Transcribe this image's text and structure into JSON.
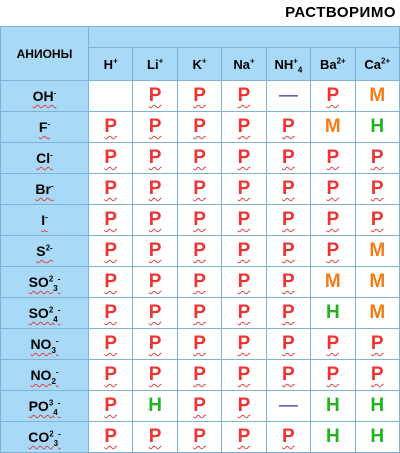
{
  "title": "РАСТВОРИМО",
  "anion_header": "АНИОНЫ",
  "cations": [
    {
      "base": "H",
      "sup": "+",
      "sub": ""
    },
    {
      "base": "Li",
      "sup": "+",
      "sub": ""
    },
    {
      "base": "K",
      "sup": "+",
      "sub": ""
    },
    {
      "base": "Na",
      "sup": "+",
      "sub": ""
    },
    {
      "base": "NH",
      "sup": "+",
      "sub": "4"
    },
    {
      "base": "Ba",
      "sup": "2+",
      "sub": ""
    },
    {
      "base": "Ca",
      "sup": "2+",
      "sub": ""
    }
  ],
  "rows": [
    {
      "anion": {
        "base": "OH",
        "sup": "-",
        "sub": ""
      },
      "values": [
        "",
        "Р",
        "Р",
        "Р",
        "—",
        "Р",
        "М"
      ]
    },
    {
      "anion": {
        "base": "F",
        "sup": "-",
        "sub": ""
      },
      "values": [
        "Р",
        "Р",
        "Р",
        "Р",
        "Р",
        "М",
        "Н"
      ]
    },
    {
      "anion": {
        "base": "Cl",
        "sup": "-",
        "sub": ""
      },
      "values": [
        "Р",
        "Р",
        "Р",
        "Р",
        "Р",
        "Р",
        "Р"
      ]
    },
    {
      "anion": {
        "base": "Br",
        "sup": "-",
        "sub": ""
      },
      "values": [
        "Р",
        "Р",
        "Р",
        "Р",
        "Р",
        "Р",
        "Р"
      ]
    },
    {
      "anion": {
        "base": "I",
        "sup": "-",
        "sub": ""
      },
      "values": [
        "Р",
        "Р",
        "Р",
        "Р",
        "Р",
        "Р",
        "Р"
      ]
    },
    {
      "anion": {
        "base": "S",
        "sup": "2-",
        "sub": ""
      },
      "values": [
        "Р",
        "Р",
        "Р",
        "Р",
        "Р",
        "Р",
        "М"
      ]
    },
    {
      "anion": {
        "base": "SO",
        "sup": "2",
        "sub": "3",
        "tail": "-"
      },
      "values": [
        "Р",
        "Р",
        "Р",
        "Р",
        "Р",
        "М",
        "М"
      ]
    },
    {
      "anion": {
        "base": "SO",
        "sup": "2",
        "sub": "4",
        "tail": "-"
      },
      "values": [
        "Р",
        "Р",
        "Р",
        "Р",
        "Р",
        "Н",
        "М"
      ]
    },
    {
      "anion": {
        "base": "NO",
        "sup": "",
        "sub": "3",
        "tail": "-"
      },
      "values": [
        "Р",
        "Р",
        "Р",
        "Р",
        "Р",
        "Р",
        "Р"
      ]
    },
    {
      "anion": {
        "base": "NO",
        "sup": "",
        "sub": "2",
        "tail": "-"
      },
      "values": [
        "Р",
        "Р",
        "Р",
        "Р",
        "Р",
        "Р",
        "Р"
      ]
    },
    {
      "anion": {
        "base": "PO",
        "sup": "3",
        "sub": "4",
        "tail": "-"
      },
      "values": [
        "Р",
        "Н",
        "Р",
        "Р",
        "—",
        "Н",
        "Н"
      ]
    },
    {
      "anion": {
        "base": "CO",
        "sup": "2",
        "sub": "3",
        "tail": "-"
      },
      "values": [
        "Р",
        "Р",
        "Р",
        "Р",
        "Р",
        "Н",
        "Н"
      ]
    }
  ],
  "colors": {
    "soluble": "#ee3333",
    "slightly_soluble": "#f07d16",
    "insoluble": "#1fb51f",
    "header_bg": "#a8daf7"
  }
}
